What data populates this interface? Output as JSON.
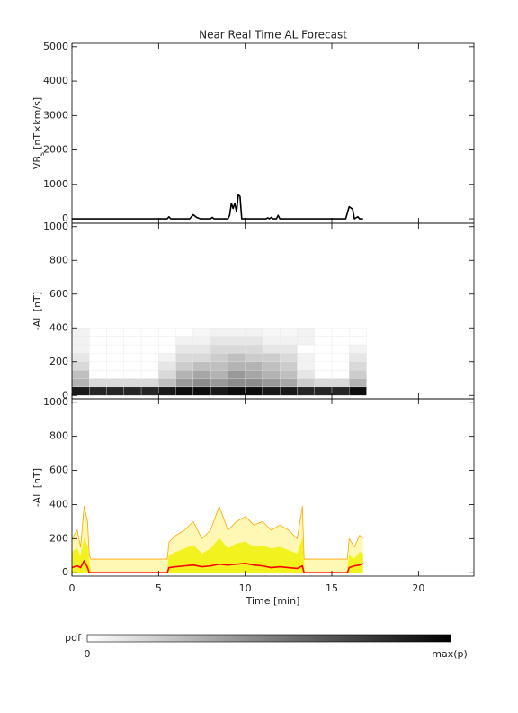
{
  "chart_data": [
    {
      "type": "line",
      "title": "Near Real Time AL Forecast",
      "y_label": "VB",
      "y_label_sub": "s",
      "y_label_unit": "[nT×km/s]",
      "xlim": [
        0,
        23.2
      ],
      "ylim": [
        -130,
        5100
      ],
      "yticks": [
        0,
        1000,
        2000,
        3000,
        4000,
        5000
      ],
      "x": [
        0,
        5.5,
        5.6,
        5.7,
        6.8,
        7.0,
        7.2,
        7.4,
        8.0,
        8.1,
        8.2,
        9.0,
        9.1,
        9.2,
        9.3,
        9.4,
        9.5,
        9.6,
        9.7,
        9.8,
        11.2,
        11.3,
        11.4,
        11.5,
        11.6,
        11.8,
        11.9,
        12.0,
        15.8,
        16.0,
        16.2,
        16.3,
        16.5,
        16.6,
        16.8
      ],
      "series": [
        {
          "color": "#000000",
          "values": [
            0,
            0,
            60,
            0,
            0,
            120,
            40,
            0,
            0,
            40,
            0,
            0,
            100,
            450,
            300,
            450,
            200,
            700,
            650,
            0,
            0,
            30,
            0,
            40,
            0,
            0,
            100,
            0,
            0,
            350,
            280,
            0,
            60,
            0,
            0
          ]
        }
      ]
    },
    {
      "type": "heatmap",
      "y_label": "-AL [nT]",
      "xlim": [
        0,
        23.2
      ],
      "ylim": [
        -20,
        1020
      ],
      "yticks": [
        0,
        200,
        400,
        600,
        800,
        1000
      ],
      "x_bins": [
        0,
        1,
        2,
        3,
        4,
        5,
        6,
        7,
        8,
        9,
        10,
        11,
        12,
        13,
        14,
        15,
        16,
        17
      ],
      "y_bins": [
        0,
        50,
        100,
        150,
        200,
        250,
        300,
        350,
        400
      ],
      "z": [
        [
          0.9,
          0.85,
          0.85,
          0.85,
          0.85,
          0.9,
          0.95,
          0.95,
          0.9,
          0.95,
          0.95,
          0.9,
          0.9,
          0.85,
          0.85,
          0.85,
          0.95
        ],
        [
          0.3,
          0.15,
          0.15,
          0.15,
          0.15,
          0.25,
          0.4,
          0.45,
          0.4,
          0.45,
          0.45,
          0.4,
          0.35,
          0.2,
          0.15,
          0.15,
          0.3
        ],
        [
          0.25,
          0,
          0,
          0,
          0,
          0.15,
          0.3,
          0.35,
          0.3,
          0.4,
          0.35,
          0.3,
          0.25,
          0.1,
          0,
          0,
          0.2
        ],
        [
          0.15,
          0,
          0,
          0,
          0,
          0.1,
          0.2,
          0.25,
          0.25,
          0.3,
          0.3,
          0.25,
          0.2,
          0.05,
          0,
          0,
          0.15
        ],
        [
          0.1,
          0,
          0,
          0,
          0,
          0.05,
          0.15,
          0.15,
          0.2,
          0.25,
          0.2,
          0.2,
          0.15,
          0.05,
          0,
          0,
          0.1
        ],
        [
          0.05,
          0,
          0,
          0,
          0,
          0,
          0.1,
          0.1,
          0.15,
          0.15,
          0.15,
          0.1,
          0.1,
          0,
          0,
          0,
          0.05
        ],
        [
          0.05,
          0,
          0,
          0,
          0,
          0,
          0.05,
          0.05,
          0.1,
          0.1,
          0.1,
          0.05,
          0.05,
          0.05,
          0,
          0,
          0
        ],
        [
          0.05,
          0,
          0,
          0,
          0,
          0,
          0,
          0.03,
          0.05,
          0.05,
          0.05,
          0.03,
          0.03,
          0.05,
          0,
          0,
          0
        ]
      ]
    },
    {
      "type": "line",
      "y_label": "-AL [nT]",
      "x_label": "Time [min]",
      "xlim": [
        0,
        23.2
      ],
      "ylim": [
        -20,
        1020
      ],
      "yticks": [
        0,
        200,
        400,
        600,
        800,
        1000
      ],
      "xticks": [
        0,
        5,
        10,
        15,
        20
      ],
      "x": [
        0,
        0.3,
        0.5,
        0.7,
        0.9,
        1.0,
        1.1,
        5.5,
        5.6,
        6,
        6.5,
        7,
        7.5,
        8,
        8.5,
        9,
        9.5,
        10,
        10.5,
        11,
        11.5,
        12,
        12.5,
        13,
        13.3,
        13.4,
        15.9,
        16,
        16.3,
        16.6,
        16.8
      ],
      "series": [
        {
          "color": "#ffa500",
          "fill_color": "#fff8b4",
          "values": [
            200,
            250,
            150,
            390,
            300,
            100,
            80,
            80,
            180,
            220,
            250,
            300,
            200,
            250,
            390,
            250,
            300,
            330,
            280,
            300,
            250,
            280,
            250,
            200,
            390,
            80,
            80,
            200,
            150,
            220,
            200
          ]
        },
        {
          "color": "#f2f21e",
          "fill_color": "#f2f21e",
          "values": [
            120,
            140,
            90,
            200,
            150,
            50,
            0,
            0,
            100,
            120,
            140,
            160,
            110,
            140,
            200,
            140,
            170,
            180,
            150,
            160,
            140,
            150,
            130,
            110,
            200,
            0,
            0,
            100,
            80,
            120,
            110
          ]
        },
        {
          "color": "#ff0000",
          "values": [
            30,
            40,
            30,
            70,
            30,
            0,
            0,
            0,
            30,
            35,
            40,
            45,
            35,
            40,
            50,
            45,
            50,
            55,
            45,
            40,
            30,
            35,
            30,
            25,
            40,
            0,
            0,
            30,
            40,
            45,
            55
          ]
        }
      ]
    }
  ],
  "colorbar": {
    "label": "pdf",
    "min_label": 0,
    "max_label": "max(p)"
  }
}
